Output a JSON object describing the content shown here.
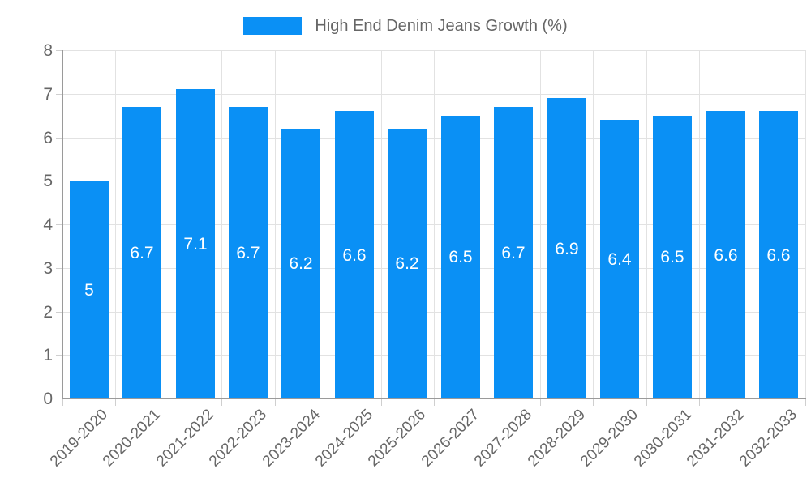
{
  "chart_data": {
    "type": "bar",
    "legend": {
      "label": "High End Denim Jeans Growth (%)",
      "position": "top"
    },
    "categories": [
      "2019-2020",
      "2020-2021",
      "2021-2022",
      "2022-2023",
      "2023-2024",
      "2024-2025",
      "2025-2026",
      "2026-2027",
      "2027-2028",
      "2028-2029",
      "2029-2030",
      "2030-2031",
      "2031-2032",
      "2032-2033"
    ],
    "values": [
      5,
      6.7,
      7.1,
      6.7,
      6.2,
      6.6,
      6.2,
      6.5,
      6.7,
      6.9,
      6.4,
      6.5,
      6.6,
      6.6
    ],
    "ylabel": "",
    "xlabel": "",
    "ylim": [
      0,
      8
    ],
    "y_tick_step": 1,
    "grid": true,
    "colors": {
      "bar": "#0a90f5",
      "bar_value_text": "#ffffff",
      "axis_text": "#666666",
      "gridline": "#e2e2e2",
      "axis_line": "#9a9a9a",
      "tick_mark": "#cfcfcf"
    }
  }
}
